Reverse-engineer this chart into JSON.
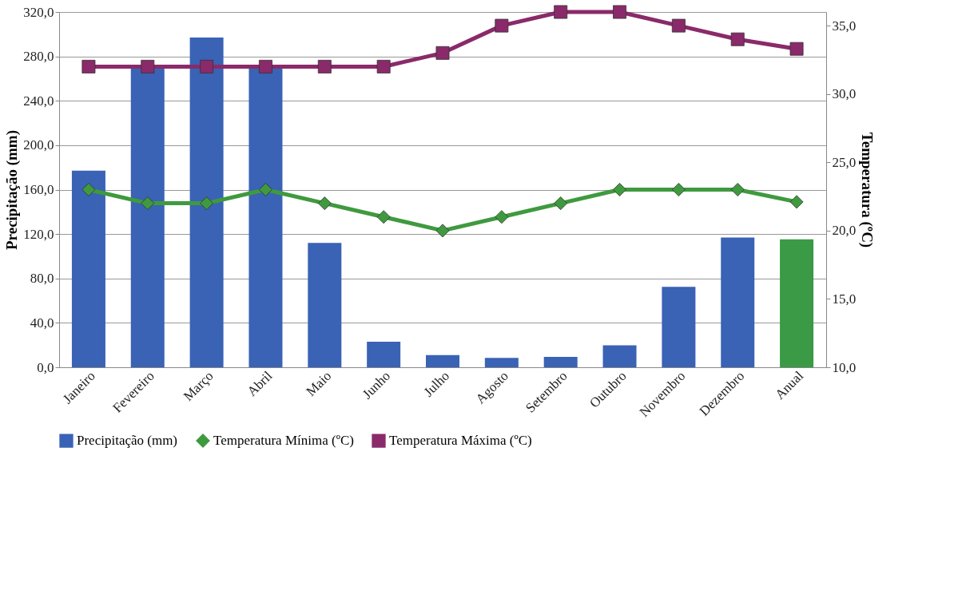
{
  "chart_data": {
    "type": "bar",
    "ylabel": "Precipitação (mm)",
    "y2label": "Temperatura (ºC)",
    "categories": [
      "Janeiro",
      "Fevereiro",
      "Março",
      "Abril",
      "Maio",
      "Junho",
      "Julho",
      "Agosto",
      "Setembro",
      "Outubro",
      "Novembro",
      "Dezembro",
      "Anual"
    ],
    "series": [
      {
        "name": "Precipitação (mm)",
        "color": "#3a62b5",
        "colors": [
          "#3a62b5",
          "#3a62b5",
          "#3a62b5",
          "#3a62b5",
          "#3a62b5",
          "#3a62b5",
          "#3a62b5",
          "#3a62b5",
          "#3a62b5",
          "#3a62b5",
          "#3a62b5",
          "#3a62b5",
          "#3a9a45"
        ],
        "values": [
          177,
          270,
          297,
          270,
          112,
          23,
          11,
          8.5,
          9.3,
          19.7,
          72.4,
          116.9,
          115.2
        ]
      },
      {
        "name": "Temperatura Mínima (ºC)",
        "type": "line",
        "axis": "y2",
        "marker": "diamond",
        "color": "#3f9a3f",
        "values": [
          23,
          22,
          22,
          23,
          22,
          21,
          20,
          21,
          22,
          23,
          23,
          23,
          22.1
        ]
      },
      {
        "name": "Temperatura Máxima (ºC)",
        "type": "line",
        "axis": "y2",
        "marker": "square",
        "color": "#8a2a6a",
        "values": [
          32,
          32,
          32,
          32,
          32,
          32,
          33,
          35,
          36,
          36,
          35,
          34,
          33.3
        ]
      }
    ],
    "ylim": [
      0,
      320
    ],
    "yticks": [
      {
        "value": 0,
        "label": "0,0"
      },
      {
        "value": 40,
        "label": "40,0"
      },
      {
        "value": 80,
        "label": "80,0"
      },
      {
        "value": 120,
        "label": "120,0"
      },
      {
        "value": 160,
        "label": "160,0"
      },
      {
        "value": 200,
        "label": "200,0"
      },
      {
        "value": 240,
        "label": "240,0"
      },
      {
        "value": 280,
        "label": "280,0"
      },
      {
        "value": 320,
        "label": "320,0"
      }
    ],
    "y2lim": [
      10,
      36
    ],
    "y2ticks": [
      {
        "value": 10,
        "label": "10,0"
      },
      {
        "value": 15,
        "label": "15,0"
      },
      {
        "value": 20,
        "label": "20,0"
      },
      {
        "value": 25,
        "label": "25,0"
      },
      {
        "value": 30,
        "label": "30,0"
      },
      {
        "value": 35,
        "label": "35,0"
      }
    ],
    "grid": "y",
    "legend": "bottom"
  }
}
